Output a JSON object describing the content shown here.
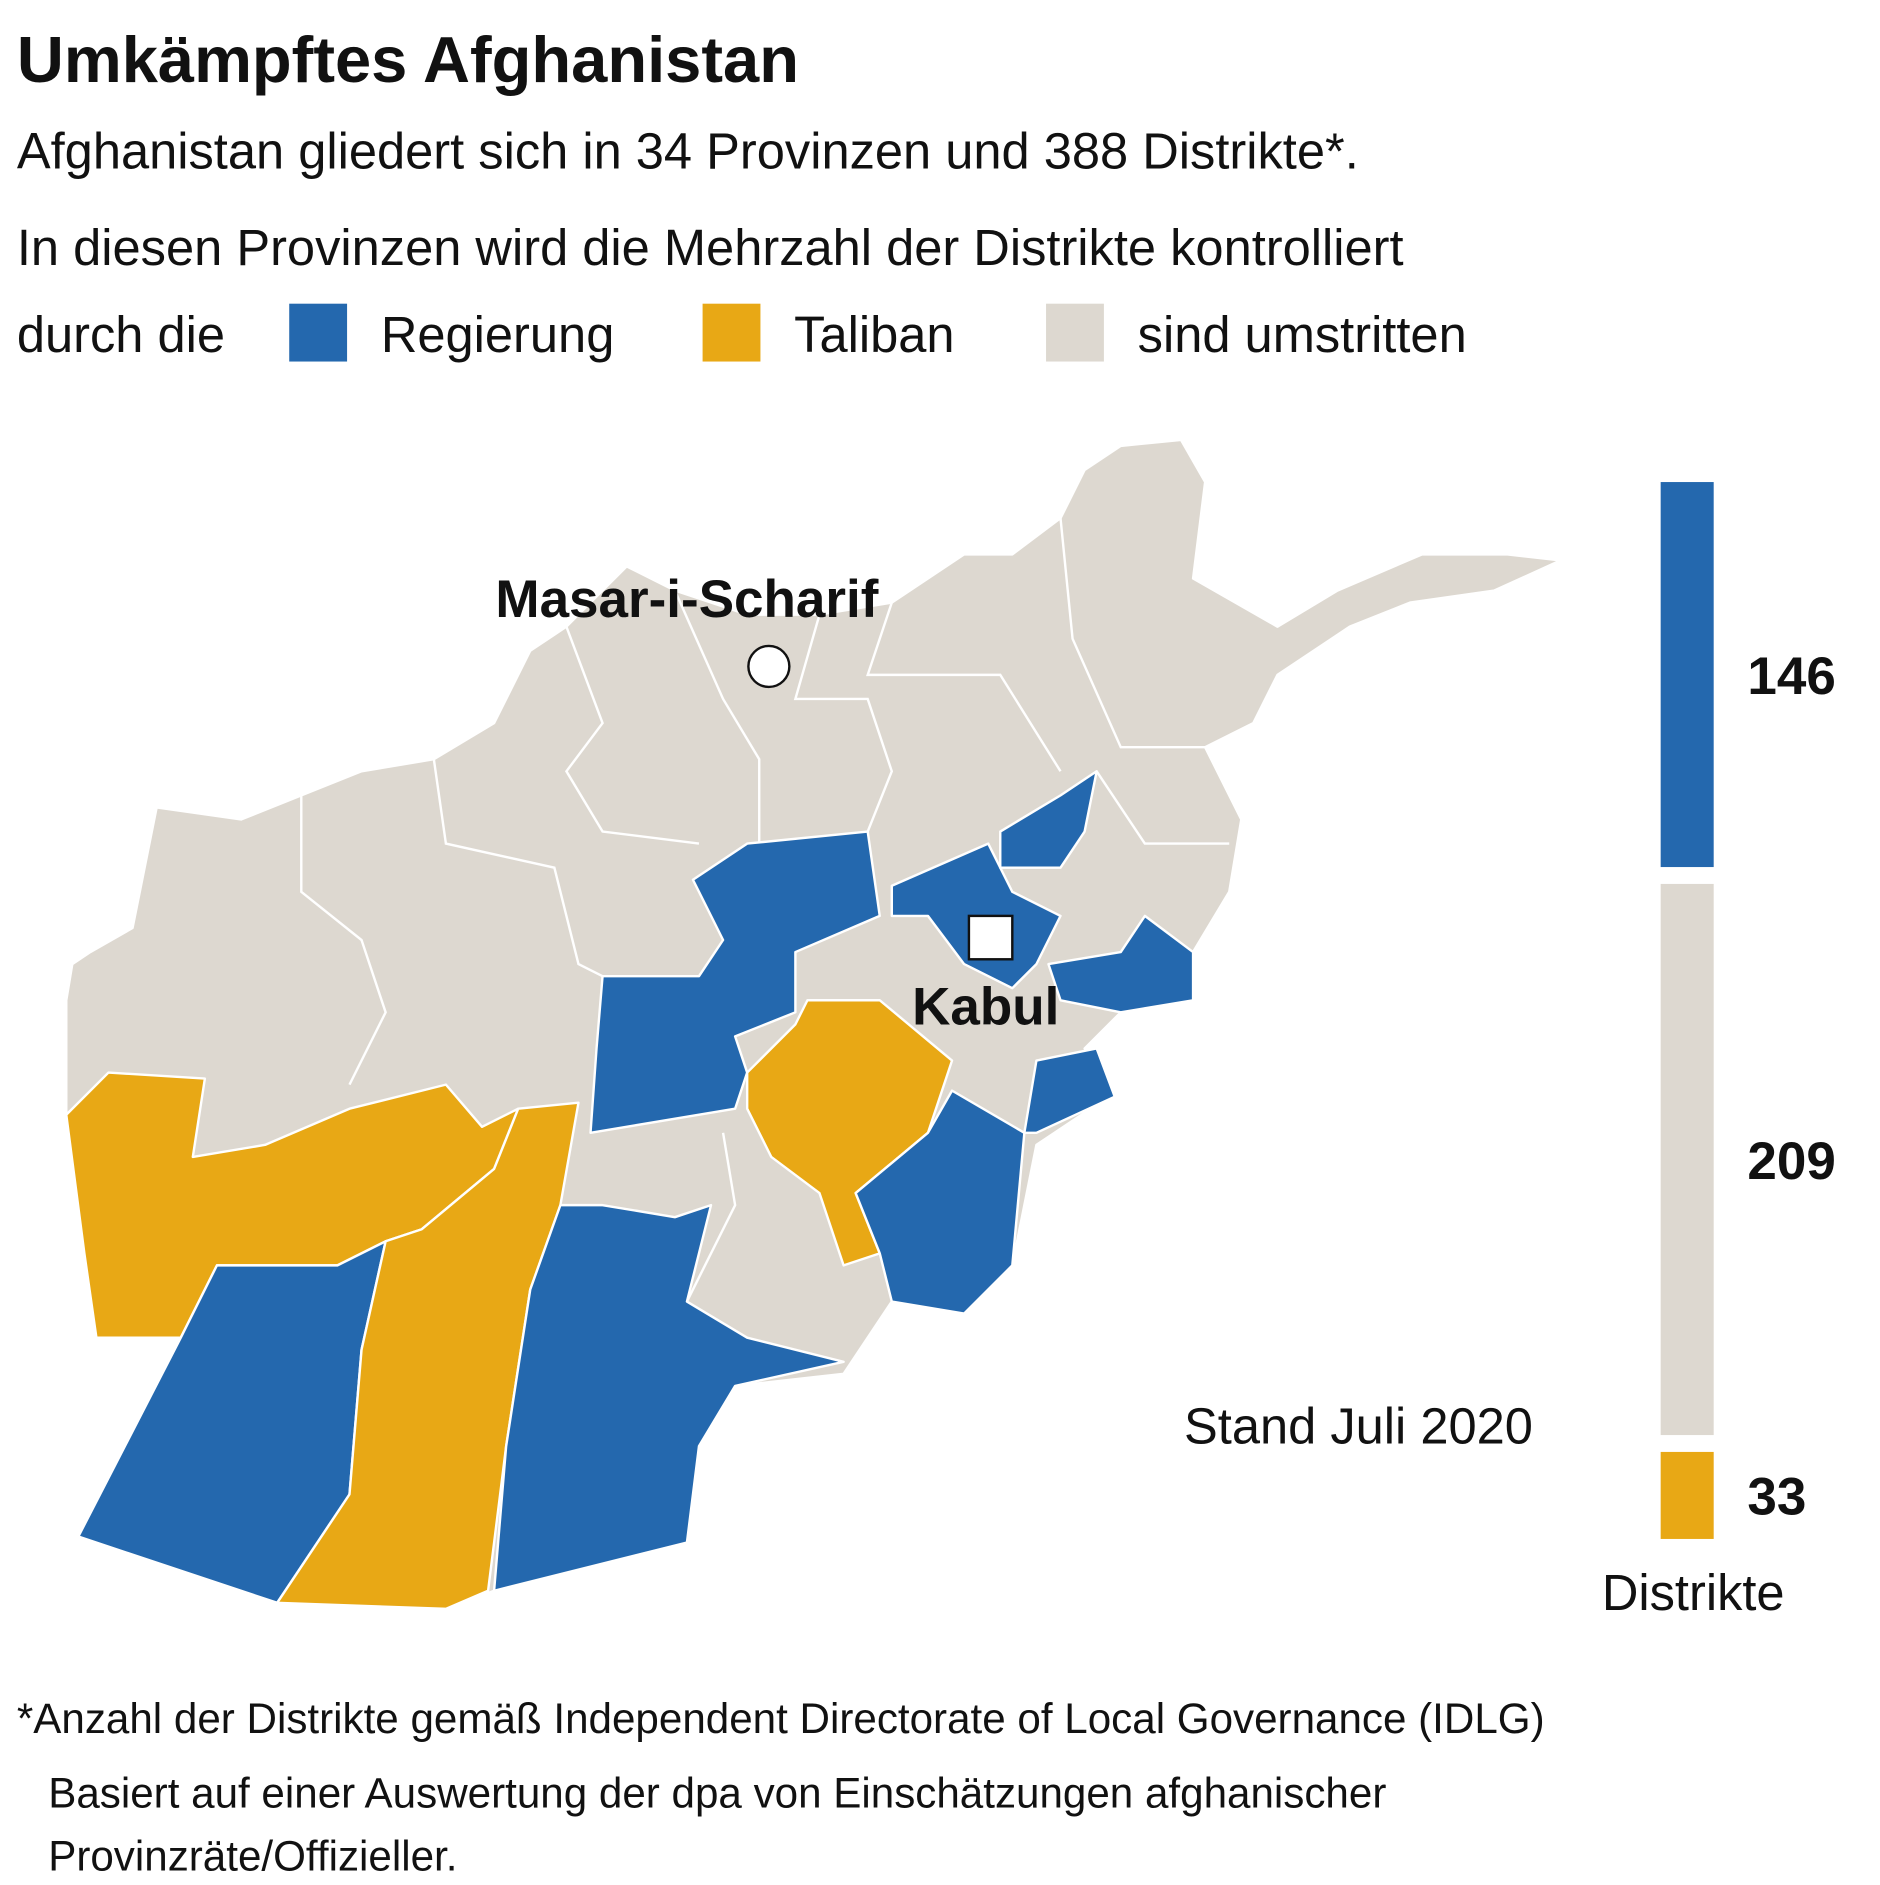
{
  "title": "Umkämpftes Afghanistan",
  "subtitle": "Afghanistan gliedert sich in 34 Provinzen und 388 Distrikte*.",
  "intro": [
    "In diesen Provinzen wird die Mehrzahl der Distrikte kontrolliert",
    "durch die"
  ],
  "legend": [
    {
      "label": "Regierung",
      "color": "#2468ae"
    },
    {
      "label": "Taliban",
      "color": "#e8a815"
    },
    {
      "label": "sind umstritten",
      "color": "#ddd8d0"
    }
  ],
  "cities": [
    "Masar-i-Scharif",
    "Kabul"
  ],
  "date": "Stand Juli 2020",
  "chart_data": {
    "type": "stacked-bar",
    "values": [
      146,
      209,
      33
    ],
    "colors": [
      "#2468ae",
      "#ddd8d0",
      "#e8a815"
    ],
    "unit": "Distrikte"
  },
  "footnotes": [
    "*Anzahl der Distrikte gemäß Independent Directorate of Local Governance (IDLG)",
    "Basiert auf einer Auswertung der dpa von Einschätzungen afghanischer",
    "Provinzräte/Offizieller."
  ]
}
